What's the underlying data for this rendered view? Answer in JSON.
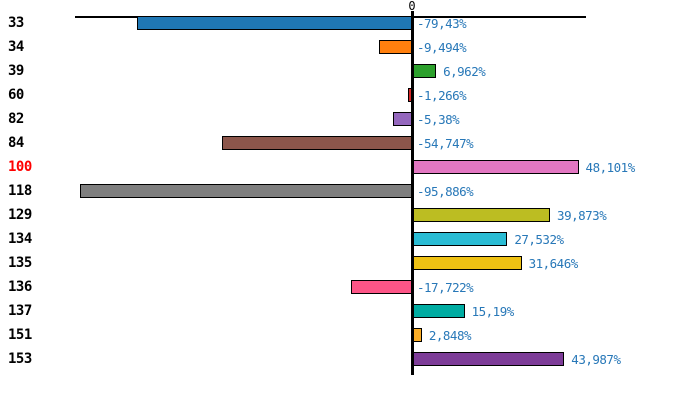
{
  "chart_data": {
    "type": "bar",
    "orientation": "horizontal",
    "title": "",
    "xlabel": "",
    "ylabel": "",
    "xlim": [
      -97.3,
      50.3
    ],
    "grid": false,
    "legend": false,
    "zero_tick_label": "0",
    "value_format": "percent with comma decimal separator",
    "categories": [
      "33",
      "34",
      "39",
      "60",
      "82",
      "84",
      "100",
      "118",
      "129",
      "134",
      "135",
      "136",
      "137",
      "151",
      "153"
    ],
    "values": [
      -79.43,
      -9.494,
      6.962,
      -1.266,
      -5.38,
      -54.747,
      48.101,
      -95.886,
      39.873,
      27.532,
      31.646,
      -17.722,
      15.19,
      2.848,
      43.987
    ],
    "value_labels": [
      "-79,43%",
      "-9,494%",
      "6,962%",
      "-1,266%",
      "-5,38%",
      "-54,747%",
      "48,101%",
      "-95,886%",
      "39,873%",
      "27,532%",
      "31,646%",
      "-17,722%",
      "15,19%",
      "2,848%",
      "43,987%"
    ],
    "bar_colors": [
      "#1f77b4",
      "#ff7f0e",
      "#2ca02c",
      "#d62728",
      "#9467bd",
      "#8c564b",
      "#e377c2",
      "#7f7f7f",
      "#bcbd22",
      "#2abcd4",
      "#eec113",
      "#fd5587",
      "#00aca2",
      "#fbad26",
      "#7d3c98"
    ],
    "category_label_colors": [
      "#000000",
      "#000000",
      "#000000",
      "#000000",
      "#000000",
      "#000000",
      "#ff0000",
      "#000000",
      "#000000",
      "#000000",
      "#000000",
      "#000000",
      "#000000",
      "#000000",
      "#000000"
    ],
    "highlighted_category": "100",
    "colors": {
      "background": "#ffffff",
      "axis": "#000000",
      "bar_border": "#000000",
      "value_label": "#2878b8",
      "highlight": "#ff0000"
    }
  }
}
